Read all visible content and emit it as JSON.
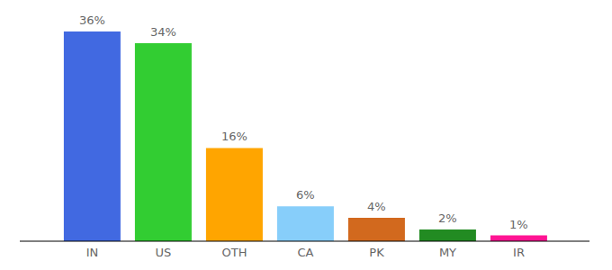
{
  "chart_data": {
    "type": "bar",
    "categories": [
      "IN",
      "US",
      "OTH",
      "CA",
      "PK",
      "MY",
      "IR"
    ],
    "values": [
      36,
      34,
      16,
      6,
      4,
      2,
      1
    ],
    "value_labels": [
      "36%",
      "34%",
      "16%",
      "6%",
      "4%",
      "2%",
      "1%"
    ],
    "colors": [
      "#4169e1",
      "#32cd32",
      "#ffa500",
      "#87cefa",
      "#d2691e",
      "#228b22",
      "#ff1493"
    ],
    "ylim": [
      0,
      36
    ],
    "data_labels": true,
    "tick_labels": "x",
    "grid": false
  }
}
